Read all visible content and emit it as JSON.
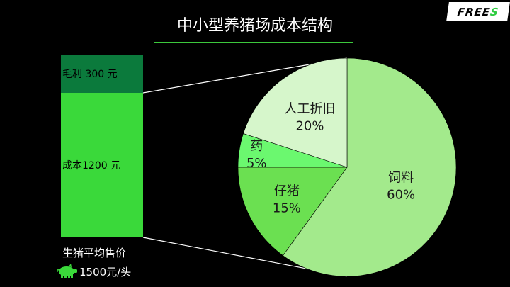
{
  "logo": {
    "text_main": "FREE",
    "text_accent": "S"
  },
  "price": {
    "label": "生猪平均售价",
    "value": "1500元/头",
    "icon": "pig-icon"
  },
  "colors": {
    "profit_bar": "#0b7a3c",
    "cost_bar": "#3ad93a",
    "title_rule": "#3cc83c"
  },
  "chart_data": [
    {
      "type": "bar",
      "stacked": true,
      "categories": [
        "生猪平均售价"
      ],
      "series": [
        {
          "name": "成本",
          "label": "成本1200 元",
          "values": [
            1200
          ]
        },
        {
          "name": "毛利",
          "label": "毛利 300  元",
          "values": [
            300
          ]
        }
      ],
      "ylim": [
        0,
        1500
      ]
    },
    {
      "type": "pie",
      "title": "中小型养猪场成本结构",
      "slices": [
        {
          "label": "饲料",
          "value": 60,
          "value_text": "60%",
          "color": "#a3ea8c"
        },
        {
          "label": "仔猪",
          "value": 15,
          "value_text": "15%",
          "color": "#6be051"
        },
        {
          "label": "药",
          "value": 5,
          "value_text": "5%",
          "color": "#6bf86f"
        },
        {
          "label": "人工折旧",
          "value": 20,
          "value_text": "20%",
          "color": "#d6f6cb"
        }
      ]
    }
  ]
}
